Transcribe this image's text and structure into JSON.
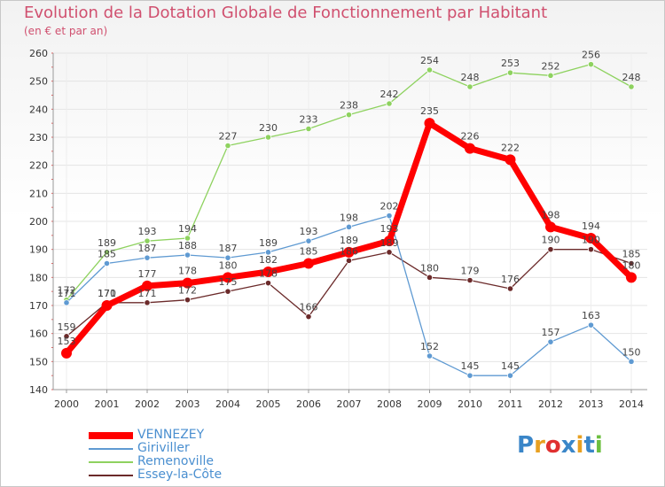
{
  "header": {
    "title": "Evolution de la Dotation Globale de Fonctionnement par Habitant",
    "subtitle": "(en € et par an)"
  },
  "logo": {
    "text": "Proxiti"
  },
  "colors": {
    "VENNEZEY": "#ff0000",
    "Giriviller": "#5f9ad2",
    "Remenoville": "#8ed25f",
    "Essey-la-Côte": "#6b2a2a"
  },
  "chart_data": {
    "type": "line",
    "title": "Evolution de la Dotation Globale de Fonctionnement par Habitant",
    "subtitle": "(en € et par an)",
    "x": [
      "2000",
      "2001",
      "2002",
      "2003",
      "2004",
      "2005",
      "2006",
      "2007",
      "2008",
      "2009",
      "2010",
      "2011",
      "2012",
      "2013",
      "2014"
    ],
    "ylim": [
      140,
      260
    ],
    "yticks": [
      140,
      150,
      160,
      170,
      180,
      190,
      200,
      210,
      220,
      230,
      240,
      250,
      260
    ],
    "grid": true,
    "legend": "bottom-left",
    "series": [
      {
        "name": "VENNEZEY",
        "values": [
          153,
          170,
          177,
          178,
          180,
          182,
          185,
          189,
          193,
          235,
          226,
          222,
          198,
          194,
          180
        ]
      },
      {
        "name": "Giriviller",
        "values": [
          171,
          185,
          187,
          188,
          187,
          189,
          193,
          198,
          202,
          152,
          145,
          145,
          157,
          163,
          150
        ]
      },
      {
        "name": "Remenoville",
        "values": [
          172,
          189,
          193,
          194,
          227,
          230,
          233,
          238,
          242,
          254,
          248,
          253,
          252,
          256,
          248
        ]
      },
      {
        "name": "Essey-la-Côte",
        "values": [
          159,
          171,
          171,
          172,
          175,
          178,
          166,
          186,
          189,
          180,
          179,
          176,
          190,
          190,
          185
        ]
      }
    ]
  }
}
